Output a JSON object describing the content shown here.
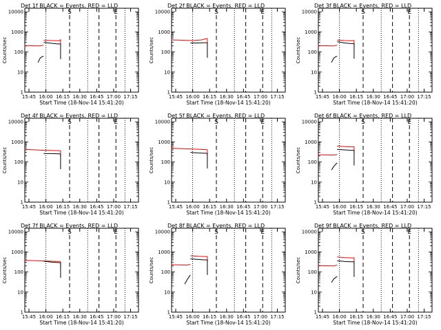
{
  "chart_data": [
    {
      "type": "line",
      "title": "Det 1f BLACK = Events, RED = LLD",
      "xlabel": "Start Time (18-Nov-14 15:41:20)",
      "ylabel": "Counts/sec",
      "x_tick_labels": [
        "15:45",
        "16:00",
        "16:15",
        "16:30",
        "16:45",
        "17:00",
        "17:15"
      ],
      "y_tick_labels": [
        "1",
        "10",
        "100",
        "1000",
        "10000"
      ],
      "y_scale": "log",
      "xlim": [
        "15:41:20",
        "17:22:00"
      ],
      "ylim": [
        1,
        15000
      ],
      "grid": false,
      "markers": {
        "S_time": "16:21",
        "E_time": "17:02",
        "dotted_times": [
          "16:00",
          "16:37",
          "17:10"
        ],
        "dashed_times": [
          "16:21",
          "16:47",
          "17:02"
        ]
      },
      "series": [
        {
          "color": "#ff0000",
          "segments": [
            {
              "x": [
                "15:41",
                "15:55",
                "15:58"
              ],
              "y": [
                210,
                200,
                220
              ]
            },
            {
              "x": [
                "15:58",
                "16:05",
                "16:12",
                "16:13"
              ],
              "y": [
                380,
                370,
                360,
                420
              ]
            }
          ]
        },
        {
          "color": "#000000",
          "segments": [
            {
              "x": [
                "15:53",
                "15:55",
                "15:57",
                "15:58"
              ],
              "y": [
                30,
                50,
                60,
                60
              ]
            },
            {
              "x": [
                "15:58",
                "16:05",
                "16:10",
                "16:13"
              ],
              "y": [
                300,
                270,
                250,
                250
              ]
            }
          ]
        }
      ]
    },
    {
      "type": "line",
      "title": "Det 2f BLACK = Events, RED = LLD",
      "xlabel": "Start Time (18-Nov-14 15:41:20)",
      "ylabel": "Counts/sec",
      "x_tick_labels": [
        "15:45",
        "16:00",
        "16:15",
        "16:30",
        "16:45",
        "17:00",
        "17:15"
      ],
      "y_tick_labels": [
        "1",
        "10",
        "100",
        "1000",
        "10000"
      ],
      "y_scale": "log",
      "xlim": [
        "15:41:20",
        "17:22:00"
      ],
      "ylim": [
        1,
        15000
      ],
      "grid": false,
      "markers": {
        "S_time": "16:21",
        "E_time": "17:02",
        "dotted_times": [
          "16:00",
          "16:37",
          "17:10"
        ],
        "dashed_times": [
          "16:21",
          "16:47",
          "17:02"
        ]
      },
      "series": [
        {
          "color": "#ff0000",
          "segments": [
            {
              "x": [
                "15:41",
                "16:00",
                "16:08",
                "16:13"
              ],
              "y": [
                400,
                370,
                400,
                470
              ]
            }
          ]
        },
        {
          "color": "#000000",
          "segments": [
            {
              "x": [
                "15:58",
                "16:05",
                "16:10",
                "16:13"
              ],
              "y": [
                280,
                280,
                290,
                290
              ]
            }
          ]
        }
      ]
    },
    {
      "type": "line",
      "title": "Det 3f BLACK = Events, RED = LLD",
      "xlabel": "Start Time (18-Nov-14 15:41:20)",
      "ylabel": "Counts/sec",
      "x_tick_labels": [
        "15:45",
        "16:00",
        "16:15",
        "16:30",
        "16:45",
        "17:00",
        "17:15"
      ],
      "y_tick_labels": [
        "1",
        "10",
        "100",
        "1000",
        "10000"
      ],
      "y_scale": "log",
      "xlim": [
        "15:41:20",
        "17:22:00"
      ],
      "ylim": [
        1,
        15000
      ],
      "grid": false,
      "markers": {
        "S_time": "16:21",
        "E_time": "17:02",
        "dotted_times": [
          "16:00",
          "16:37",
          "17:10"
        ],
        "dashed_times": [
          "16:21",
          "16:47",
          "17:02"
        ]
      },
      "series": [
        {
          "color": "#ff0000",
          "segments": [
            {
              "x": [
                "15:41",
                "15:55",
                "15:58"
              ],
              "y": [
                210,
                200,
                220
              ]
            },
            {
              "x": [
                "15:58",
                "16:05",
                "16:12",
                "16:13"
              ],
              "y": [
                390,
                370,
                360,
                380
              ]
            }
          ]
        },
        {
          "color": "#000000",
          "segments": [
            {
              "x": [
                "15:53",
                "15:55",
                "15:57",
                "15:58"
              ],
              "y": [
                30,
                50,
                60,
                60
              ]
            },
            {
              "x": [
                "15:58",
                "16:05",
                "16:10",
                "16:13"
              ],
              "y": [
                320,
                280,
                260,
                260
              ]
            }
          ]
        }
      ]
    },
    {
      "type": "line",
      "title": "Det 4f BLACK = Events, RED = LLD",
      "xlabel": "Start Time (18-Nov-14 15:41:20)",
      "ylabel": "Counts/sec",
      "x_tick_labels": [
        "15:45",
        "16:00",
        "16:15",
        "16:30",
        "16:45",
        "17:00",
        "17:15"
      ],
      "y_tick_labels": [
        "1",
        "10",
        "100",
        "1000",
        "10000"
      ],
      "y_scale": "log",
      "xlim": [
        "15:41:20",
        "17:22:00"
      ],
      "ylim": [
        1,
        15000
      ],
      "grid": false,
      "markers": {
        "S_time": "16:21",
        "E_time": "17:02",
        "dotted_times": [
          "16:00",
          "16:37",
          "17:10"
        ],
        "dashed_times": [
          "16:21",
          "16:47",
          "17:02"
        ]
      },
      "series": [
        {
          "color": "#ff0000",
          "segments": [
            {
              "x": [
                "15:41",
                "16:00",
                "16:13"
              ],
              "y": [
                420,
                380,
                360
              ]
            }
          ]
        },
        {
          "color": "#000000",
          "segments": [
            {
              "x": [
                "15:58",
                "16:05",
                "16:13"
              ],
              "y": [
                260,
                260,
                250
              ]
            }
          ]
        }
      ]
    },
    {
      "type": "line",
      "title": "Det 5f BLACK = Events, RED = LLD",
      "xlabel": "Start Time (18-Nov-14 15:41:20)",
      "ylabel": "Counts/sec",
      "x_tick_labels": [
        "15:45",
        "16:00",
        "16:15",
        "16:30",
        "16:45",
        "17:00",
        "17:15"
      ],
      "y_tick_labels": [
        "1",
        "10",
        "100",
        "1000",
        "10000"
      ],
      "y_scale": "log",
      "xlim": [
        "15:41:20",
        "17:22:00"
      ],
      "ylim": [
        1,
        15000
      ],
      "grid": false,
      "markers": {
        "S_time": "16:21",
        "E_time": "17:02",
        "dotted_times": [
          "16:00",
          "16:37",
          "17:10"
        ],
        "dashed_times": [
          "16:21",
          "16:47",
          "17:02"
        ]
      },
      "series": [
        {
          "color": "#ff0000",
          "segments": [
            {
              "x": [
                "15:41",
                "16:00",
                "16:13"
              ],
              "y": [
                480,
                440,
                410
              ]
            }
          ]
        },
        {
          "color": "#000000",
          "segments": [
            {
              "x": [
                "15:58",
                "16:05",
                "16:13"
              ],
              "y": [
                300,
                280,
                270
              ]
            }
          ]
        }
      ]
    },
    {
      "type": "line",
      "title": "Det 6f BLACK = Events, RED = LLD",
      "xlabel": "Start Time (18-Nov-14 15:41:20)",
      "ylabel": "Counts/sec",
      "x_tick_labels": [
        "15:45",
        "16:00",
        "16:15",
        "16:30",
        "16:45",
        "17:00",
        "17:15"
      ],
      "y_tick_labels": [
        "1",
        "10",
        "100",
        "1000",
        "10000"
      ],
      "y_scale": "log",
      "xlim": [
        "15:41:20",
        "17:22:00"
      ],
      "ylim": [
        1,
        15000
      ],
      "grid": false,
      "markers": {
        "S_time": "16:21",
        "E_time": "17:02",
        "dotted_times": [
          "16:00",
          "16:37",
          "17:10"
        ],
        "dashed_times": [
          "16:21",
          "16:47",
          "17:02"
        ]
      },
      "series": [
        {
          "color": "#ff0000",
          "segments": [
            {
              "x": [
                "15:41",
                "15:55",
                "15:58"
              ],
              "y": [
                230,
                220,
                240
              ]
            },
            {
              "x": [
                "15:58",
                "16:05",
                "16:12",
                "16:13"
              ],
              "y": [
                620,
                580,
                560,
                580
              ]
            }
          ]
        },
        {
          "color": "#000000",
          "segments": [
            {
              "x": [
                "15:53",
                "15:55",
                "15:57",
                "15:58"
              ],
              "y": [
                40,
                60,
                80,
                90
              ]
            },
            {
              "x": [
                "15:58",
                "16:05",
                "16:10",
                "16:13"
              ],
              "y": [
                420,
                400,
                380,
                380
              ]
            }
          ]
        }
      ]
    },
    {
      "type": "line",
      "title": "Det 7f BLACK = Events, RED = LLD",
      "xlabel": "Start Time (18-Nov-14 15:41:20)",
      "ylabel": "Counts/sec",
      "x_tick_labels": [
        "15:45",
        "16:00",
        "16:15",
        "16:30",
        "16:45",
        "17:00",
        "17:15"
      ],
      "y_tick_labels": [
        "1",
        "10",
        "100",
        "1000",
        "10000"
      ],
      "y_scale": "log",
      "xlim": [
        "15:41:20",
        "17:22:00"
      ],
      "ylim": [
        1,
        15000
      ],
      "grid": false,
      "markers": {
        "S_time": "16:21",
        "E_time": "17:02",
        "dotted_times": [
          "16:00",
          "16:37",
          "17:10"
        ],
        "dashed_times": [
          "16:21",
          "16:47",
          "17:02"
        ]
      },
      "series": [
        {
          "color": "#ff0000",
          "segments": [
            {
              "x": [
                "15:41",
                "16:00",
                "16:13"
              ],
              "y": [
                380,
                350,
                330
              ]
            }
          ]
        },
        {
          "color": "#000000",
          "segments": [
            {
              "x": [
                "15:58",
                "16:05",
                "16:13"
              ],
              "y": [
                340,
                310,
                290
              ]
            }
          ]
        }
      ]
    },
    {
      "type": "line",
      "title": "Det 8f BLACK = Events, RED = LLD",
      "xlabel": "Start Time (18-Nov-14 15:41:20)",
      "ylabel": "Counts/sec",
      "x_tick_labels": [
        "15:45",
        "16:00",
        "16:15",
        "16:30",
        "16:45",
        "17:00",
        "17:15"
      ],
      "y_tick_labels": [
        "1",
        "10",
        "100",
        "1000",
        "10000"
      ],
      "y_scale": "log",
      "xlim": [
        "15:41:20",
        "17:22:00"
      ],
      "ylim": [
        1,
        15000
      ],
      "grid": false,
      "markers": {
        "S_time": "16:21",
        "E_time": "17:02",
        "dotted_times": [
          "16:00",
          "16:37",
          "17:10"
        ],
        "dashed_times": [
          "16:21",
          "16:47",
          "17:02"
        ]
      },
      "series": [
        {
          "color": "#ff0000",
          "segments": [
            {
              "x": [
                "15:41",
                "15:55",
                "15:58"
              ],
              "y": [
                230,
                220,
                240
              ]
            },
            {
              "x": [
                "15:58",
                "16:05",
                "16:12",
                "16:13"
              ],
              "y": [
                640,
                600,
                580,
                600
              ]
            }
          ]
        },
        {
          "color": "#000000",
          "segments": [
            {
              "x": [
                "15:53",
                "15:55",
                "15:57",
                "15:58"
              ],
              "y": [
                25,
                40,
                60,
                70
              ]
            },
            {
              "x": [
                "15:58",
                "16:05",
                "16:10",
                "16:13"
              ],
              "y": [
                450,
                420,
                400,
                400
              ]
            }
          ]
        }
      ]
    },
    {
      "type": "line",
      "title": "Det 9f BLACK = Events, RED = LLD",
      "xlabel": "Start Time (18-Nov-14 15:41:20)",
      "ylabel": "Counts/sec",
      "x_tick_labels": [
        "15:45",
        "16:00",
        "16:15",
        "16:30",
        "16:45",
        "17:00",
        "17:15"
      ],
      "y_tick_labels": [
        "1",
        "10",
        "100",
        "1000",
        "10000"
      ],
      "y_scale": "log",
      "xlim": [
        "15:41:20",
        "17:22:00"
      ],
      "ylim": [
        1,
        15000
      ],
      "grid": false,
      "markers": {
        "S_time": "16:21",
        "E_time": "17:02",
        "dotted_times": [
          "16:00",
          "16:37",
          "17:10"
        ],
        "dashed_times": [
          "16:21",
          "16:47",
          "17:02"
        ]
      },
      "series": [
        {
          "color": "#ff0000",
          "segments": [
            {
              "x": [
                "15:41",
                "15:55",
                "15:58"
              ],
              "y": [
                210,
                200,
                220
              ]
            },
            {
              "x": [
                "15:58",
                "16:05",
                "16:12",
                "16:13"
              ],
              "y": [
                560,
                520,
                500,
                520
              ]
            }
          ]
        },
        {
          "color": "#000000",
          "segments": [
            {
              "x": [
                "15:53",
                "15:55",
                "15:57",
                "15:58"
              ],
              "y": [
                30,
                45,
                55,
                60
              ]
            },
            {
              "x": [
                "15:58",
                "16:05",
                "16:10",
                "16:13"
              ],
              "y": [
                360,
                330,
                320,
                320
              ]
            }
          ]
        }
      ]
    }
  ],
  "marker_labels": {
    "start": "S",
    "end": "E"
  },
  "colors": {
    "lld": "#ff0000",
    "events": "#000000",
    "axes": "#000000",
    "background": "#ffffff"
  }
}
